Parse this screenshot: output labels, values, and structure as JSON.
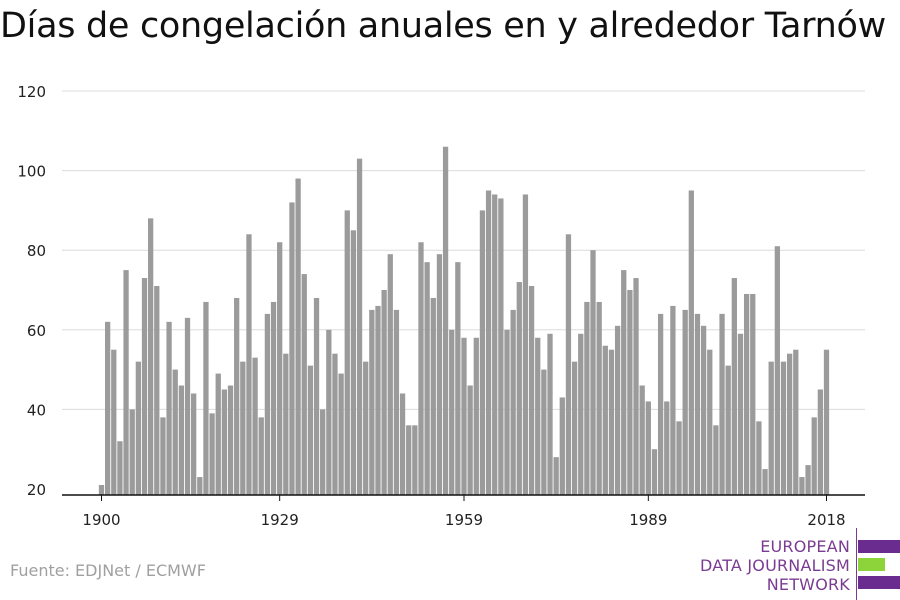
{
  "title": "Días de congelación anuales en y alrededor Tarnów",
  "source": "Fuente: EDJNet / ECMWF",
  "logo": {
    "lines": [
      "EUROPEAN",
      "DATA JOURNALISM",
      "NETWORK"
    ],
    "colors": [
      "#6b2c8f",
      "#8dd33a",
      "#6b2c8f"
    ]
  },
  "chart_data": {
    "type": "bar",
    "title": "Días de congelación anuales en y alrededor Tarnów",
    "xlabel": "",
    "ylabel": "",
    "ylim": [
      20,
      120
    ],
    "yticks": [
      20,
      40,
      60,
      80,
      100,
      120
    ],
    "xticks": [
      1900,
      1929,
      1959,
      1989,
      2018
    ],
    "grid": true,
    "bar_color": "#9b9b9b",
    "x": [
      1900,
      1901,
      1902,
      1903,
      1904,
      1905,
      1906,
      1907,
      1908,
      1909,
      1910,
      1911,
      1912,
      1913,
      1914,
      1915,
      1916,
      1917,
      1918,
      1919,
      1920,
      1921,
      1922,
      1923,
      1924,
      1925,
      1926,
      1927,
      1928,
      1929,
      1930,
      1931,
      1932,
      1933,
      1934,
      1935,
      1936,
      1937,
      1938,
      1939,
      1940,
      1941,
      1942,
      1943,
      1944,
      1945,
      1946,
      1947,
      1948,
      1949,
      1950,
      1951,
      1952,
      1953,
      1954,
      1955,
      1956,
      1957,
      1958,
      1959,
      1960,
      1961,
      1962,
      1963,
      1964,
      1965,
      1966,
      1967,
      1968,
      1969,
      1970,
      1971,
      1972,
      1973,
      1974,
      1975,
      1976,
      1977,
      1978,
      1979,
      1980,
      1981,
      1982,
      1983,
      1984,
      1985,
      1986,
      1987,
      1988,
      1989,
      1990,
      1991,
      1992,
      1993,
      1994,
      1995,
      1996,
      1997,
      1998,
      1999,
      2000,
      2001,
      2002,
      2003,
      2004,
      2005,
      2006,
      2007,
      2008,
      2009,
      2010,
      2011,
      2012,
      2013,
      2014,
      2015,
      2016,
      2017,
      2018
    ],
    "values": [
      21,
      62,
      55,
      32,
      75,
      40,
      52,
      73,
      88,
      71,
      38,
      62,
      50,
      46,
      63,
      44,
      23,
      67,
      39,
      49,
      45,
      46,
      68,
      52,
      84,
      53,
      38,
      64,
      67,
      82,
      54,
      92,
      98,
      74,
      51,
      68,
      40,
      60,
      54,
      49,
      90,
      85,
      103,
      52,
      65,
      66,
      70,
      79,
      65,
      44,
      36,
      36,
      82,
      77,
      68,
      79,
      106,
      60,
      77,
      58,
      46,
      58,
      90,
      95,
      94,
      93,
      60,
      65,
      72,
      94,
      71,
      58,
      50,
      59,
      28,
      43,
      84,
      52,
      59,
      67,
      80,
      67,
      56,
      55,
      61,
      75,
      70,
      73,
      46,
      42,
      30,
      64,
      42,
      66,
      37,
      65,
      95,
      64,
      61,
      55,
      36,
      64,
      51,
      73,
      59,
      69,
      69,
      37,
      25,
      52,
      81,
      52,
      54,
      55,
      23,
      26,
      38,
      45,
      55
    ]
  }
}
